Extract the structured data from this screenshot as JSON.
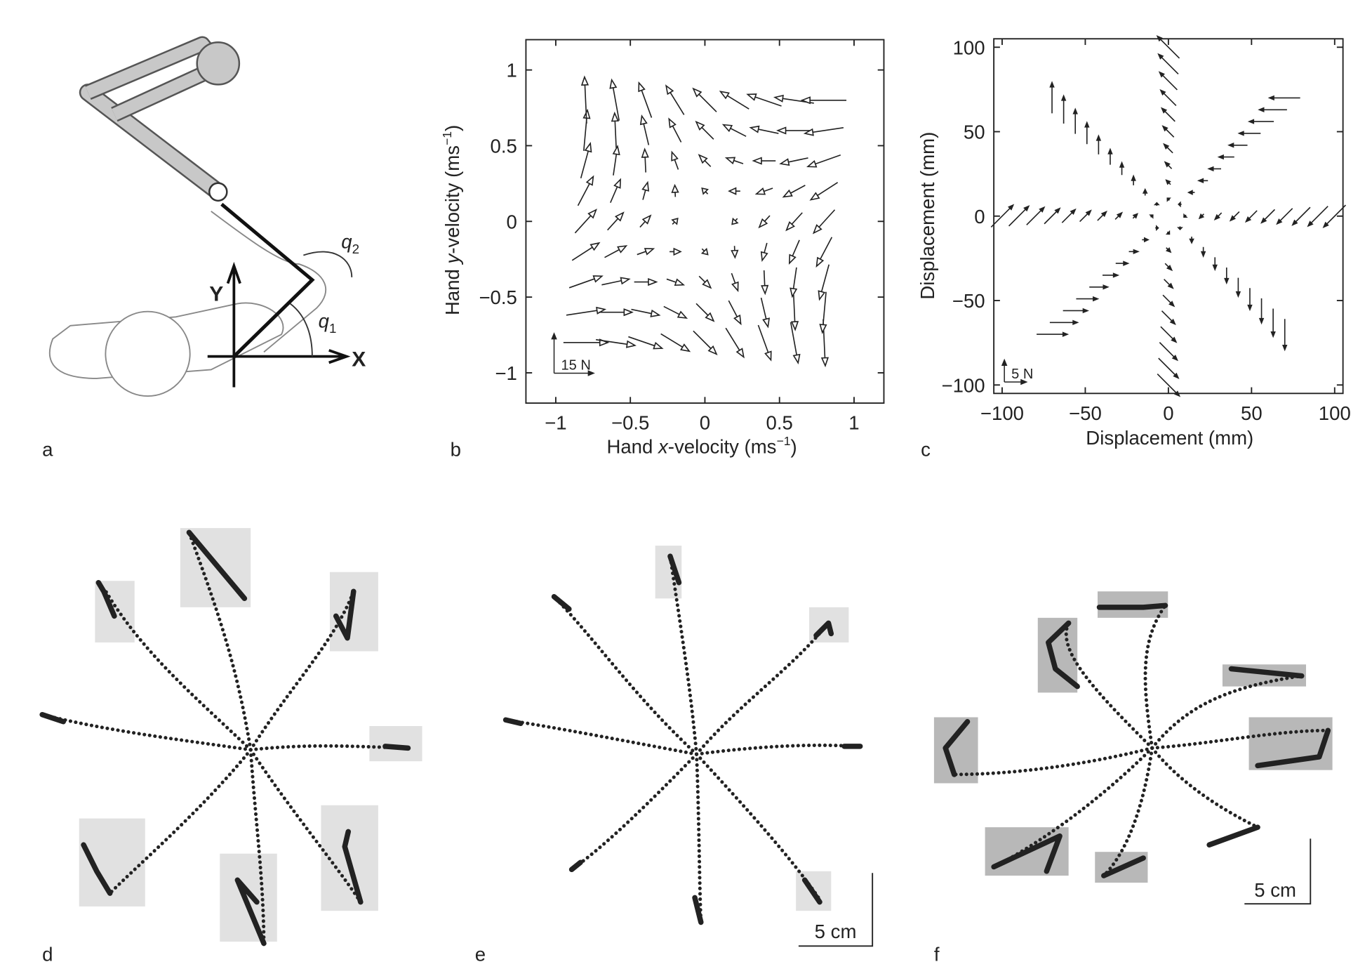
{
  "figure": {
    "panel_labels": [
      "a",
      "b",
      "c",
      "d",
      "e",
      "f"
    ],
    "diagram": {
      "x_axis": "X",
      "y_axis": "Y",
      "angles": [
        {
          "symbol": "q",
          "subscript": "2"
        },
        {
          "symbol": "q",
          "subscript": "1"
        }
      ]
    },
    "scale_bars": [
      "5 cm",
      "5 cm"
    ]
  },
  "chart_data": [
    {
      "type": "quiver",
      "x_label": [
        "Hand ",
        "x",
        "-velocity (ms",
        "−1",
        ")"
      ],
      "y_label": [
        "Hand ",
        "y",
        "-velocity (ms",
        "−1",
        ")"
      ],
      "xlim": [
        -1.2,
        1.2
      ],
      "ylim": [
        -1.2,
        1.2
      ],
      "xticks": [
        {
          "value": -1,
          "label": "−1"
        },
        {
          "value": -0.5,
          "label": "−0.5"
        },
        0,
        0.5,
        1
      ],
      "yticks": [
        {
          "value": -1,
          "label": "−1"
        },
        {
          "value": -0.5,
          "label": "−0.5"
        },
        0,
        0.5,
        1
      ],
      "scale_arrow": {
        "value": 15,
        "label": "15 N"
      },
      "x": [
        -0.8,
        -0.6,
        -0.4,
        -0.2,
        0,
        0.2,
        0.4,
        0.6,
        0.8
      ],
      "y": [
        -0.8,
        -0.6,
        -0.4,
        -0.2,
        0,
        0.2,
        0.4,
        0.6,
        0.8
      ],
      "fx": [
        [
          16.8,
          14.8,
          12.8,
          10.8,
          8.8,
          6.8,
          4.8,
          2.8,
          0.8
        ],
        [
          14.6,
          12.6,
          10.6,
          8.6,
          6.6,
          4.6,
          2.6,
          0.6,
          -1.4
        ],
        [
          12.4,
          10.4,
          8.4,
          6.4,
          4.4,
          2.4,
          0.4,
          -1.6,
          -3.6
        ],
        [
          10.2,
          8.2,
          6.2,
          4.2,
          2.2,
          0.2,
          -1.8,
          -3.8,
          -5.8
        ],
        [
          8,
          6,
          4,
          2,
          0,
          -2,
          -4,
          -6,
          -8
        ],
        [
          5.8,
          3.8,
          1.8,
          -0.2,
          -2.2,
          -4.2,
          -6.2,
          -8.2,
          -10.2
        ],
        [
          3.6,
          1.6,
          -0.4,
          -2.4,
          -4.4,
          -6.4,
          -8.4,
          -10.4,
          -12.4
        ],
        [
          1.4,
          -0.6,
          -2.6,
          -4.6,
          -6.6,
          -8.6,
          -10.6,
          -12.6,
          -14.6
        ],
        [
          -0.8,
          -2.8,
          -4.8,
          -6.8,
          -8.8,
          -10.8,
          -12.8,
          -14.8,
          -16.8
        ]
      ],
      "fy": [
        [
          0,
          -2.2,
          -4.4,
          -6.6,
          -8.8,
          -11,
          -13.2,
          -15.4,
          -17.6
        ],
        [
          2.2,
          0,
          -2.2,
          -4.4,
          -6.6,
          -8.8,
          -11,
          -13.2,
          -15.4
        ],
        [
          4.4,
          2.2,
          0,
          -2.2,
          -4.4,
          -6.6,
          -8.8,
          -11,
          -13.2
        ],
        [
          6.6,
          4.4,
          2.2,
          0,
          -2.2,
          -4.4,
          -6.6,
          -8.8,
          -11
        ],
        [
          8.8,
          6.6,
          4.4,
          2.2,
          0,
          -2.2,
          -4.4,
          -6.6,
          -8.8
        ],
        [
          11,
          8.8,
          6.6,
          4.4,
          2.2,
          0,
          -2.2,
          -4.4,
          -6.6
        ],
        [
          13.2,
          11,
          8.8,
          6.6,
          4.4,
          2.2,
          0,
          -2.2,
          -4.4
        ],
        [
          15.4,
          13.2,
          11,
          8.8,
          6.6,
          4.4,
          2.2,
          0,
          -2.2
        ],
        [
          17.6,
          15.4,
          13.2,
          11,
          8.8,
          6.6,
          4.4,
          2.2,
          0
        ]
      ]
    },
    {
      "type": "quiver",
      "x_label": [
        "Displacement (mm)"
      ],
      "y_label": [
        "Displacement (mm)"
      ],
      "xlim": [
        -105,
        105
      ],
      "ylim": [
        -105,
        105
      ],
      "xticks": [
        {
          "value": -100,
          "label": "−100"
        },
        {
          "value": -50,
          "label": "−50"
        },
        0,
        50,
        100
      ],
      "yticks": [
        {
          "value": -100,
          "label": "−100"
        },
        {
          "value": -50,
          "label": "−50"
        },
        0,
        50,
        100
      ],
      "scale_arrow": {
        "value": 5,
        "label": "5 N"
      },
      "groups": [
        {
          "x": [
            10,
            20,
            30,
            40,
            50,
            60,
            70,
            80,
            90,
            100
          ],
          "y": [
            0,
            0,
            0,
            0,
            0,
            0,
            0,
            0,
            0,
            0
          ],
          "fx": [
            -0.5,
            -1,
            -1.5,
            -2,
            -2.5,
            -3,
            -3.5,
            -4,
            -4.5,
            -5
          ],
          "fy": [
            -0.5,
            -1,
            -1.5,
            -2,
            -2.5,
            -3,
            -3.5,
            -4,
            -4.5,
            -5
          ]
        },
        {
          "x": [
            7,
            14,
            21,
            28,
            35,
            42,
            49,
            56,
            63,
            70
          ],
          "y": [
            7,
            14,
            21,
            28,
            35,
            42,
            49,
            56,
            63,
            70
          ],
          "fx": [
            -0.7,
            -1.4,
            -2.1,
            -2.8,
            -3.5,
            -4.2,
            -4.9,
            -5.6,
            -6.3,
            -7
          ],
          "fy": [
            0,
            0,
            0,
            0,
            0,
            0,
            0,
            0,
            0,
            0
          ]
        },
        {
          "x": [
            0,
            0,
            0,
            0,
            0,
            0,
            0,
            0,
            0,
            0
          ],
          "y": [
            10,
            20,
            30,
            40,
            50,
            60,
            70,
            80,
            90,
            100
          ],
          "fx": [
            -0.5,
            -1,
            -1.5,
            -2,
            -2.5,
            -3,
            -3.5,
            -4,
            -4.5,
            -5
          ],
          "fy": [
            0.5,
            1,
            1.5,
            2,
            2.5,
            3,
            3.5,
            4,
            4.5,
            5
          ]
        },
        {
          "x": [
            -7,
            -14,
            -21,
            -28,
            -35,
            -42,
            -49,
            -56,
            -63,
            -70
          ],
          "y": [
            7,
            14,
            21,
            28,
            35,
            42,
            49,
            56,
            63,
            70
          ],
          "fx": [
            0,
            0,
            0,
            0,
            0,
            0,
            0,
            0,
            0,
            0
          ],
          "fy": [
            0.7,
            1.4,
            2.1,
            2.8,
            3.5,
            4.2,
            4.9,
            5.6,
            6.3,
            7
          ]
        },
        {
          "x": [
            -10,
            -20,
            -30,
            -40,
            -50,
            -60,
            -70,
            -80,
            -90,
            -100
          ],
          "y": [
            0,
            0,
            0,
            0,
            0,
            0,
            0,
            0,
            0,
            0
          ],
          "fx": [
            0.5,
            1,
            1.5,
            2,
            2.5,
            3,
            3.5,
            4,
            4.5,
            5
          ],
          "fy": [
            0.5,
            1,
            1.5,
            2,
            2.5,
            3,
            3.5,
            4,
            4.5,
            5
          ]
        },
        {
          "x": [
            -7,
            -14,
            -21,
            -28,
            -35,
            -42,
            -49,
            -56,
            -63,
            -70
          ],
          "y": [
            -7,
            -14,
            -21,
            -28,
            -35,
            -42,
            -49,
            -56,
            -63,
            -70
          ],
          "fx": [
            0.7,
            1.4,
            2.1,
            2.8,
            3.5,
            4.2,
            4.9,
            5.6,
            6.3,
            7
          ],
          "fy": [
            0,
            0,
            0,
            0,
            0,
            0,
            0,
            0,
            0,
            0
          ]
        },
        {
          "x": [
            0,
            0,
            0,
            0,
            0,
            0,
            0,
            0,
            0,
            0
          ],
          "y": [
            -10,
            -20,
            -30,
            -40,
            -50,
            -60,
            -70,
            -80,
            -90,
            -100
          ],
          "fx": [
            0.5,
            1,
            1.5,
            2,
            2.5,
            3,
            3.5,
            4,
            4.5,
            5
          ],
          "fy": [
            -0.5,
            -1,
            -1.5,
            -2,
            -2.5,
            -3,
            -3.5,
            -4,
            -4.5,
            -5
          ]
        },
        {
          "x": [
            7,
            14,
            21,
            28,
            35,
            42,
            49,
            56,
            63,
            70
          ],
          "y": [
            -7,
            -14,
            -21,
            -28,
            -35,
            -42,
            -49,
            -56,
            -63,
            -70
          ],
          "fx": [
            0,
            0,
            0,
            0,
            0,
            0,
            0,
            0,
            0,
            0
          ],
          "fy": [
            -0.7,
            -1.4,
            -2.1,
            -2.8,
            -3.5,
            -4.2,
            -4.9,
            -5.6,
            -6.3,
            -7
          ]
        }
      ]
    }
  ]
}
